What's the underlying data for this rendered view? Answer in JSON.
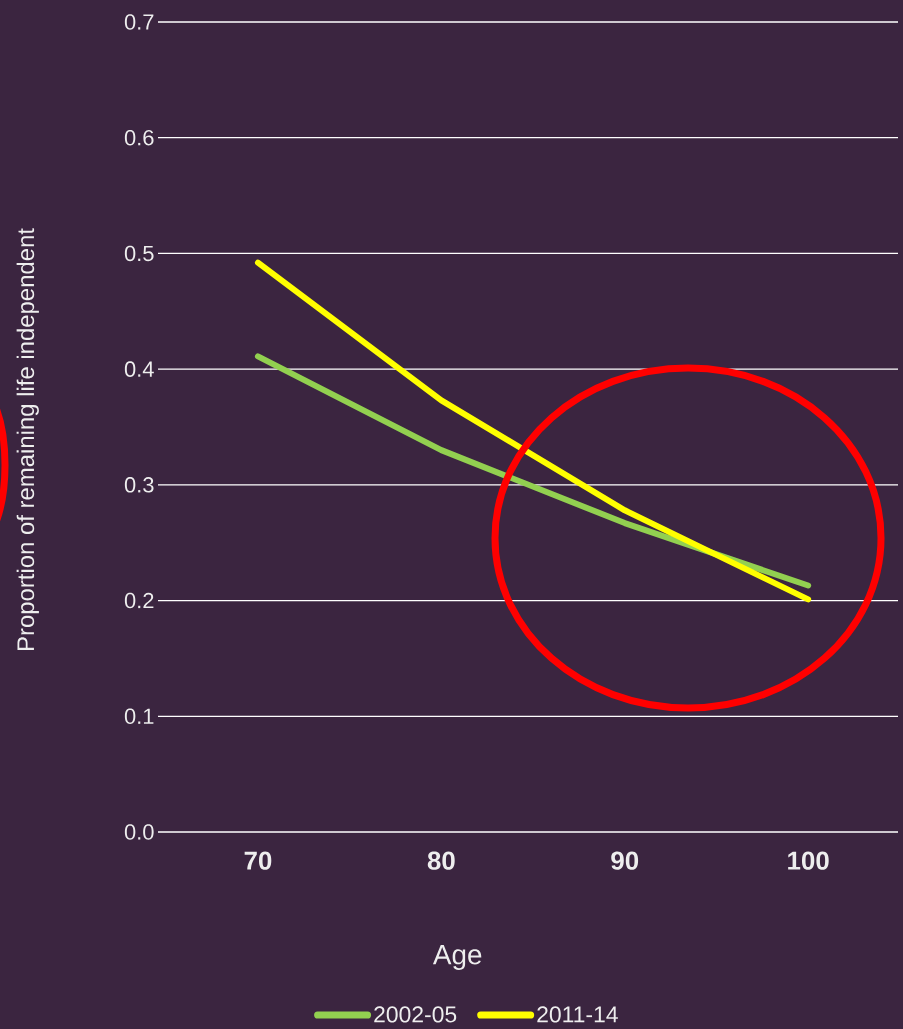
{
  "chart_data": {
    "type": "line",
    "xlabel": "Age",
    "ylabel": "Proportion of remaining life independent",
    "categories": [
      "70",
      "80",
      "90",
      "100"
    ],
    "series": [
      {
        "name": "2002-05",
        "color": "#92d050",
        "values": [
          0.411,
          0.33,
          0.267,
          0.213
        ]
      },
      {
        "name": "2011-14",
        "color": "#ffff00",
        "values": [
          0.492,
          0.373,
          0.278,
          0.201
        ]
      }
    ],
    "ylim": [
      0,
      0.7
    ],
    "yticks": [
      {
        "value": 0,
        "label": "0.0"
      },
      0.1,
      0.2,
      0.3,
      0.4,
      0.5,
      0.6,
      0.7
    ],
    "grid": "y",
    "legend": "bottom"
  }
}
